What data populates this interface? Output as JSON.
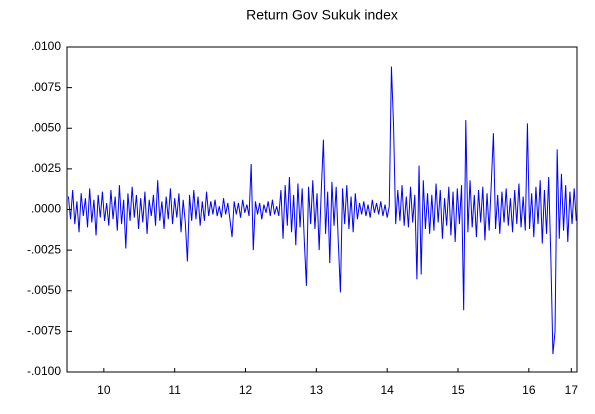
{
  "chart_data": {
    "type": "line",
    "title": "Return Gov Sukuk index",
    "color": "#0000ff",
    "grid": false,
    "xlim": [
      2009.98,
      2017.18
    ],
    "xticks": [
      {
        "value": 2010.5,
        "label": "10"
      },
      {
        "value": 2011.5,
        "label": "11"
      },
      {
        "value": 2012.5,
        "label": "12"
      },
      {
        "value": 2013.5,
        "label": "13"
      },
      {
        "value": 2014.5,
        "label": "14"
      },
      {
        "value": 2015.5,
        "label": "15"
      },
      {
        "value": 2016.5,
        "label": "16"
      },
      {
        "value": 2017.1,
        "label": "17"
      }
    ],
    "ylim": [
      -0.01,
      0.01
    ],
    "yticks": [
      {
        "value": 0.01,
        "label": ".0100"
      },
      {
        "value": 0.0075,
        "label": ".0075"
      },
      {
        "value": 0.005,
        "label": ".0050"
      },
      {
        "value": 0.0025,
        "label": ".0025"
      },
      {
        "value": 0,
        "label": ".0000"
      },
      {
        "value": -0.0025,
        "label": "-.0025"
      },
      {
        "value": -0.005,
        "label": "-.0050"
      },
      {
        "value": -0.0075,
        "label": "-.0075"
      },
      {
        "value": -0.01,
        "label": "-.0100"
      }
    ],
    "x": [
      2010,
      2010.03,
      2010.06,
      2010.09,
      2010.12,
      2010.15,
      2010.18,
      2010.21,
      2010.24,
      2010.27,
      2010.3,
      2010.33,
      2010.36,
      2010.39,
      2010.42,
      2010.45,
      2010.48,
      2010.51,
      2010.54,
      2010.57,
      2010.6,
      2010.63,
      2010.66,
      2010.69,
      2010.72,
      2010.75,
      2010.78,
      2010.81,
      2010.84,
      2010.87,
      2010.9,
      2010.93,
      2010.96,
      2010.99,
      2011.02,
      2011.05,
      2011.08,
      2011.11,
      2011.14,
      2011.17,
      2011.2,
      2011.23,
      2011.26,
      2011.29,
      2011.32,
      2011.35,
      2011.38,
      2011.41,
      2011.44,
      2011.47,
      2011.5,
      2011.53,
      2011.56,
      2011.59,
      2011.62,
      2011.65,
      2011.68,
      2011.71,
      2011.74,
      2011.77,
      2011.8,
      2011.83,
      2011.86,
      2011.89,
      2011.92,
      2011.95,
      2011.98,
      2012.01,
      2012.04,
      2012.07,
      2012.1,
      2012.13,
      2012.16,
      2012.19,
      2012.22,
      2012.25,
      2012.28,
      2012.31,
      2012.34,
      2012.37,
      2012.4,
      2012.43,
      2012.46,
      2012.49,
      2012.52,
      2012.55,
      2012.58,
      2012.61,
      2012.64,
      2012.67,
      2012.7,
      2012.73,
      2012.76,
      2012.79,
      2012.82,
      2012.85,
      2012.88,
      2012.91,
      2012.94,
      2012.97,
      2013,
      2013.03,
      2013.06,
      2013.09,
      2013.12,
      2013.15,
      2013.18,
      2013.21,
      2013.24,
      2013.27,
      2013.3,
      2013.33,
      2013.36,
      2013.39,
      2013.42,
      2013.45,
      2013.48,
      2013.51,
      2013.54,
      2013.57,
      2013.6,
      2013.63,
      2013.66,
      2013.69,
      2013.72,
      2013.75,
      2013.78,
      2013.81,
      2013.84,
      2013.87,
      2013.9,
      2013.93,
      2013.96,
      2013.99,
      2014.02,
      2014.05,
      2014.08,
      2014.11,
      2014.14,
      2014.17,
      2014.2,
      2014.23,
      2014.26,
      2014.29,
      2014.32,
      2014.35,
      2014.38,
      2014.41,
      2014.44,
      2014.47,
      2014.5,
      2014.53,
      2014.56,
      2014.59,
      2014.62,
      2014.65,
      2014.68,
      2014.71,
      2014.74,
      2014.77,
      2014.8,
      2014.83,
      2014.86,
      2014.89,
      2014.92,
      2014.95,
      2014.98,
      2015.01,
      2015.04,
      2015.07,
      2015.1,
      2015.13,
      2015.16,
      2015.19,
      2015.22,
      2015.25,
      2015.28,
      2015.31,
      2015.34,
      2015.37,
      2015.4,
      2015.43,
      2015.46,
      2015.49,
      2015.52,
      2015.55,
      2015.58,
      2015.61,
      2015.64,
      2015.67,
      2015.7,
      2015.73,
      2015.76,
      2015.79,
      2015.82,
      2015.85,
      2015.88,
      2015.91,
      2015.94,
      2015.97,
      2016,
      2016.03,
      2016.06,
      2016.09,
      2016.12,
      2016.15,
      2016.18,
      2016.21,
      2016.24,
      2016.27,
      2016.3,
      2016.33,
      2016.36,
      2016.39,
      2016.42,
      2016.45,
      2016.48,
      2016.51,
      2016.54,
      2016.57,
      2016.6,
      2016.63,
      2016.66,
      2016.69,
      2016.72,
      2016.75,
      2016.78,
      2016.81,
      2016.84,
      2016.87,
      2016.9,
      2016.93,
      2016.96,
      2016.99,
      2017.02,
      2017.05,
      2017.08,
      2017.11,
      2017.14,
      2017.17
    ],
    "values": [
      0.0008,
      -0.0006,
      0.0012,
      -0.0009,
      0.0005,
      -0.0014,
      0.001,
      -0.0004,
      0.0007,
      -0.0011,
      0.0013,
      -0.0008,
      0.0006,
      -0.0016,
      0.0009,
      -0.0005,
      0.0011,
      -0.0007,
      0.0004,
      -0.001,
      0.0012,
      -0.0006,
      0.0008,
      -0.0013,
      0.0015,
      -0.0009,
      0.0006,
      -0.0024,
      0.001,
      -0.0007,
      0.0014,
      -0.0005,
      0.0009,
      -0.0012,
      0.0007,
      -0.0008,
      0.0011,
      -0.0015,
      0.0006,
      -0.0004,
      0.0009,
      -0.001,
      0.0018,
      -0.0007,
      0.0005,
      -0.0012,
      0.0008,
      -0.0006,
      0.0013,
      -0.0009,
      0.0007,
      -0.0005,
      0.001,
      -0.0014,
      0.0006,
      -0.0008,
      -0.0032,
      0.0009,
      -0.0007,
      0.0012,
      -0.0006,
      0.0008,
      -0.001,
      0.0005,
      -0.0007,
      0.0011,
      -0.0004,
      0.0005,
      -0.0003,
      0.0006,
      -0.0004,
      0.0002,
      -0.0005,
      0.0007,
      -0.0003,
      0.0004,
      -0.0006,
      -0.0017,
      0.0005,
      -0.0003,
      0.0004,
      -0.0005,
      0.0006,
      -0.0002,
      0.0003,
      -0.0004,
      0.0028,
      -0.0025,
      0.0005,
      -0.0003,
      0.0004,
      -0.0006,
      0.0003,
      -0.0002,
      0.0005,
      -0.0004,
      0.0006,
      -0.0003,
      0.0002,
      -0.0004,
      0.0012,
      -0.0018,
      0.0015,
      -0.001,
      0.002,
      -0.0014,
      0.0009,
      -0.0022,
      0.0016,
      -0.0011,
      0.0013,
      -0.0019,
      -0.0047,
      0.0014,
      -0.0009,
      0.0018,
      -0.0012,
      0.001,
      -0.0025,
      0.0012,
      0.0043,
      -0.0015,
      0.0011,
      -0.0033,
      0.0017,
      -0.001,
      0.0014,
      -0.002,
      -0.0051,
      0.0013,
      -0.0009,
      0.0015,
      -0.0012,
      0.0008,
      -0.0014,
      0.001,
      -0.0006,
      0.0004,
      -0.0003,
      0.0005,
      -0.0004,
      0.0003,
      -0.0005,
      0.0006,
      -0.0002,
      0.0004,
      -0.0003,
      0.0005,
      -0.0004,
      0.0003,
      -0.0005,
      0.0002,
      0.0088,
      0.0052,
      -0.0009,
      0.0012,
      -0.0007,
      0.0015,
      -0.001,
      0.0008,
      -0.0011,
      0.0014,
      -0.0008,
      0.0009,
      -0.0043,
      0.0027,
      -0.004,
      0.0018,
      -0.0012,
      0.001,
      -0.0015,
      0.0009,
      -0.0013,
      0.0016,
      -0.0008,
      0.0012,
      -0.0018,
      0.0007,
      -0.001,
      0.0014,
      -0.0016,
      0.0011,
      -0.002,
      0.0013,
      -0.0009,
      0.0015,
      -0.0062,
      0.0055,
      -0.0014,
      0.0018,
      -0.0011,
      0.0009,
      -0.0017,
      0.0012,
      -0.0008,
      0.0014,
      -0.0019,
      0.001,
      -0.0013,
      0.0016,
      0.0047,
      -0.0012,
      0.0009,
      -0.0015,
      0.0011,
      -0.0008,
      0.0013,
      -0.001,
      0.0007,
      -0.0014,
      0.0012,
      -0.0009,
      0.0016,
      -0.0011,
      0.0008,
      -0.0013,
      0.0053,
      -0.0012,
      0.001,
      -0.0017,
      0.0014,
      -0.0009,
      0.0018,
      -0.0021,
      0.0012,
      -0.0015,
      0.002,
      -0.0028,
      -0.0089,
      -0.0075,
      0.0037,
      -0.0018,
      0.0022,
      -0.0013,
      0.0015,
      -0.002,
      0.0011,
      -0.0009,
      0.0013,
      -0.0007
    ]
  }
}
